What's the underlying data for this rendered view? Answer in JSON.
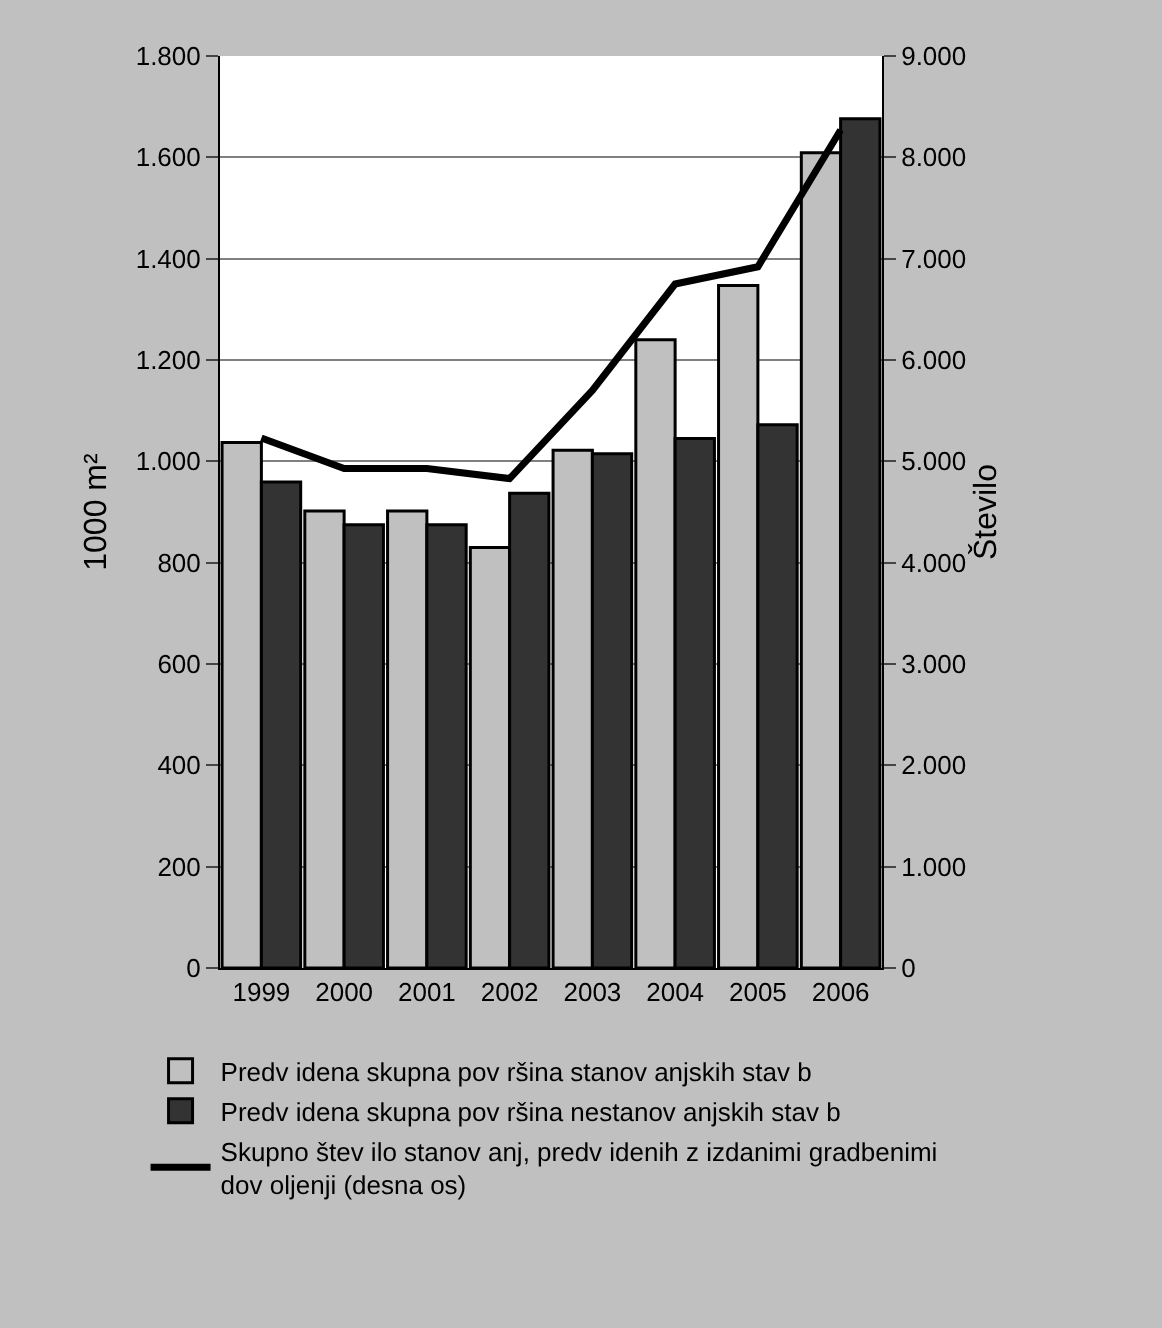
{
  "chart_data": {
    "type": "bar",
    "categories": [
      "1999",
      "2000",
      "2001",
      "2002",
      "2003",
      "2004",
      "2005",
      "2006"
    ],
    "series": [
      {
        "name": "Predv idena skupna pov ršina stanov anjskih stav b",
        "color": "#c0c0c0",
        "values": [
          1037,
          902,
          902,
          830,
          1022,
          1240,
          1347,
          1609
        ]
      },
      {
        "name": "Predv idena skupna pov ršina nestanov anjskih stav b",
        "color": "#333333",
        "values": [
          959,
          875,
          875,
          937,
          1015,
          1045,
          1072,
          1676
        ]
      },
      {
        "name": "Skupno štev ilo stanov anj, predv idenih z izdanimi gradbenimi\ndov oljenji (desna os)",
        "type": "line",
        "axis": "y2",
        "color": "#000000",
        "values": [
          5230,
          4930,
          4930,
          4830,
          5700,
          6750,
          6920,
          8270
        ]
      }
    ],
    "ylabel": "1000 m²",
    "y2label": "Število",
    "ylim": [
      0,
      1800
    ],
    "yticks": [
      0,
      200,
      400,
      600,
      800,
      {
        "value": 1000,
        "label": "1.000"
      },
      {
        "value": 1200,
        "label": "1.200"
      },
      {
        "value": 1400,
        "label": "1.400"
      },
      {
        "value": 1600,
        "label": "1.600"
      },
      {
        "value": 1800,
        "label": "1.800"
      }
    ],
    "y2lim": [
      0,
      9000
    ],
    "y2ticks": [
      0,
      {
        "value": 1000,
        "label": "1.000"
      },
      {
        "value": 2000,
        "label": "2.000"
      },
      {
        "value": 3000,
        "label": "3.000"
      },
      {
        "value": 4000,
        "label": "4.000"
      },
      {
        "value": 5000,
        "label": "5.000"
      },
      {
        "value": 6000,
        "label": "6.000"
      },
      {
        "value": 7000,
        "label": "7.000"
      },
      {
        "value": 8000,
        "label": "8.000"
      },
      {
        "value": 9000,
        "label": "9.000"
      }
    ],
    "grid": "y",
    "legend": "bottom",
    "marker": "none",
    "line_style": "solid"
  }
}
